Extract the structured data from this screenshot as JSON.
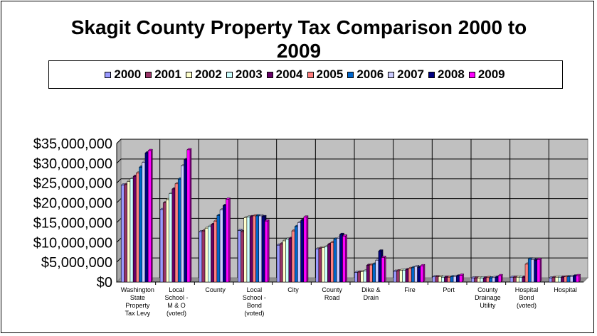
{
  "chart_data": {
    "type": "bar",
    "title": "Skagit County Property Tax Comparison 2000 to\n2009",
    "xlabel": "",
    "ylabel": "",
    "ylim": [
      0,
      35000000
    ],
    "yticks": [
      "$0",
      "$5,000,000",
      "$10,000,000",
      "$15,000,000",
      "$20,000,000",
      "$25,000,000",
      "$30,000,000",
      "$35,000,000"
    ],
    "grid": true,
    "legend_position": "top",
    "categories": [
      "Washington State Property Tax Levy",
      "Local School - M & O (voted)",
      "County",
      "Local School - Bond (voted)",
      "City",
      "County Road",
      "Dike & Drain",
      "Fire",
      "Port",
      "County Drainage Utility",
      "Hospital Bond (voted)",
      "Hospital"
    ],
    "category_label_lines": [
      [
        "Washington",
        "State",
        "Property",
        "Tax Levy"
      ],
      [
        "Local",
        "School -",
        "M & O",
        "(voted)"
      ],
      [
        "County"
      ],
      [
        "Local",
        "School -",
        "Bond",
        "(voted)"
      ],
      [
        "City"
      ],
      [
        "County",
        "Road"
      ],
      [
        "Dike &",
        "Drain"
      ],
      [
        "Fire"
      ],
      [
        "Port"
      ],
      [
        "County",
        "Drainage",
        "Utility"
      ],
      [
        "Hospital",
        "Bond",
        "(voted)"
      ],
      [
        "Hospital"
      ]
    ],
    "series": [
      {
        "name": "2000",
        "color": "#9999FF",
        "values": [
          24500000,
          18300000,
          12700000,
          13000000,
          9300000,
          8300000,
          2400000,
          2700000,
          1300000,
          1000000,
          1200000,
          1000000
        ]
      },
      {
        "name": "2001",
        "color": "#993366",
        "values": [
          24600000,
          20000000,
          12900000,
          12700000,
          9600000,
          8500000,
          2500000,
          2800000,
          1300000,
          1000000,
          1200000,
          1100000
        ]
      },
      {
        "name": "2002",
        "color": "#FFFFCC",
        "values": [
          25400000,
          20800000,
          13600000,
          16200000,
          10400000,
          8700000,
          2600000,
          2900000,
          1300000,
          1000000,
          1200000,
          1200000
        ]
      },
      {
        "name": "2003",
        "color": "#CCFFFF",
        "values": [
          26100000,
          22300000,
          14000000,
          16400000,
          10800000,
          8900000,
          2800000,
          3000000,
          1200000,
          1000000,
          1200000,
          1200000
        ]
      },
      {
        "name": "2004",
        "color": "#660066",
        "values": [
          26700000,
          23500000,
          14500000,
          16500000,
          11000000,
          9500000,
          4200000,
          3100000,
          1200000,
          1000000,
          1200000,
          1200000
        ]
      },
      {
        "name": "2005",
        "color": "#FF8080",
        "values": [
          27500000,
          24800000,
          15400000,
          16700000,
          12900000,
          10000000,
          4300000,
          3400000,
          1200000,
          1100000,
          4500000,
          1300000
        ]
      },
      {
        "name": "2006",
        "color": "#0066CC",
        "values": [
          29000000,
          26000000,
          16800000,
          16700000,
          14000000,
          10800000,
          4500000,
          3600000,
          1300000,
          1000000,
          5800000,
          1300000
        ]
      },
      {
        "name": "2007",
        "color": "#CCCCFF",
        "values": [
          30200000,
          29300000,
          18200000,
          16700000,
          15000000,
          11000000,
          5500000,
          3900000,
          1400000,
          1100000,
          5700000,
          1400000
        ]
      },
      {
        "name": "2008",
        "color": "#000080",
        "values": [
          32600000,
          30900000,
          19300000,
          16500000,
          15600000,
          12000000,
          7800000,
          3700000,
          1500000,
          1200000,
          5500000,
          1500000
        ]
      },
      {
        "name": "2009",
        "color": "#FF00FF",
        "values": [
          33200000,
          33400000,
          20900000,
          15400000,
          16400000,
          11600000,
          6200000,
          4100000,
          1700000,
          1600000,
          5700000,
          1600000
        ]
      }
    ]
  }
}
